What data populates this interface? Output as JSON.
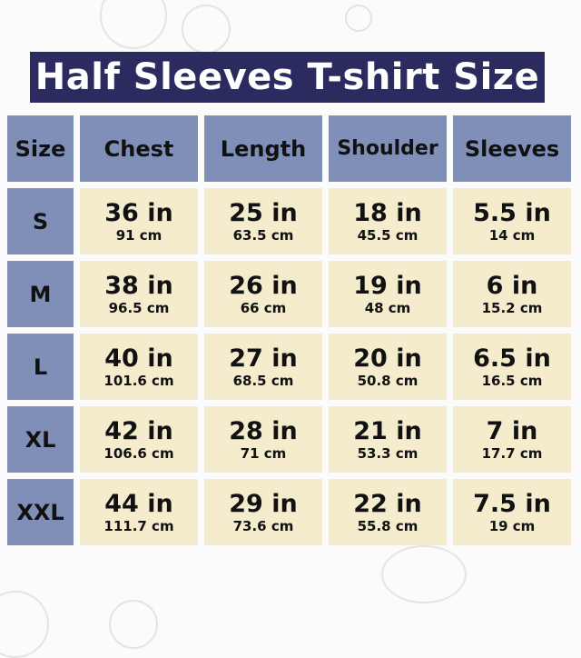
{
  "title": "Half Sleeves T-shirt Size",
  "colors": {
    "title_bg": "#2c2b60",
    "header_bg": "#7f8fb8",
    "cell_bg": "#f5ebcd"
  },
  "headers": [
    "Size",
    "Chest",
    "Length",
    "Shoulder",
    "Sleeves"
  ],
  "rows": [
    {
      "size": "S",
      "cells": [
        {
          "in": "36 in",
          "cm": "91 cm"
        },
        {
          "in": "25 in",
          "cm": "63.5 cm"
        },
        {
          "in": "18 in",
          "cm": "45.5 cm"
        },
        {
          "in": "5.5 in",
          "cm": "14 cm"
        }
      ]
    },
    {
      "size": "M",
      "cells": [
        {
          "in": "38 in",
          "cm": "96.5 cm"
        },
        {
          "in": "26 in",
          "cm": "66 cm"
        },
        {
          "in": "19 in",
          "cm": "48 cm"
        },
        {
          "in": "6 in",
          "cm": "15.2 cm"
        }
      ]
    },
    {
      "size": "L",
      "cells": [
        {
          "in": "40 in",
          "cm": "101.6 cm"
        },
        {
          "in": "27 in",
          "cm": "68.5 cm"
        },
        {
          "in": "20 in",
          "cm": "50.8 cm"
        },
        {
          "in": "6.5 in",
          "cm": "16.5 cm"
        }
      ]
    },
    {
      "size": "XL",
      "cells": [
        {
          "in": "42 in",
          "cm": "106.6 cm"
        },
        {
          "in": "28 in",
          "cm": "71 cm"
        },
        {
          "in": "21 in",
          "cm": "53.3 cm"
        },
        {
          "in": "7 in",
          "cm": "17.7 cm"
        }
      ]
    },
    {
      "size": "XXL",
      "cells": [
        {
          "in": "44 in",
          "cm": "111.7 cm"
        },
        {
          "in": "29 in",
          "cm": "73.6 cm"
        },
        {
          "in": "22 in",
          "cm": "55.8 cm"
        },
        {
          "in": "7.5 in",
          "cm": "19 cm"
        }
      ]
    }
  ]
}
